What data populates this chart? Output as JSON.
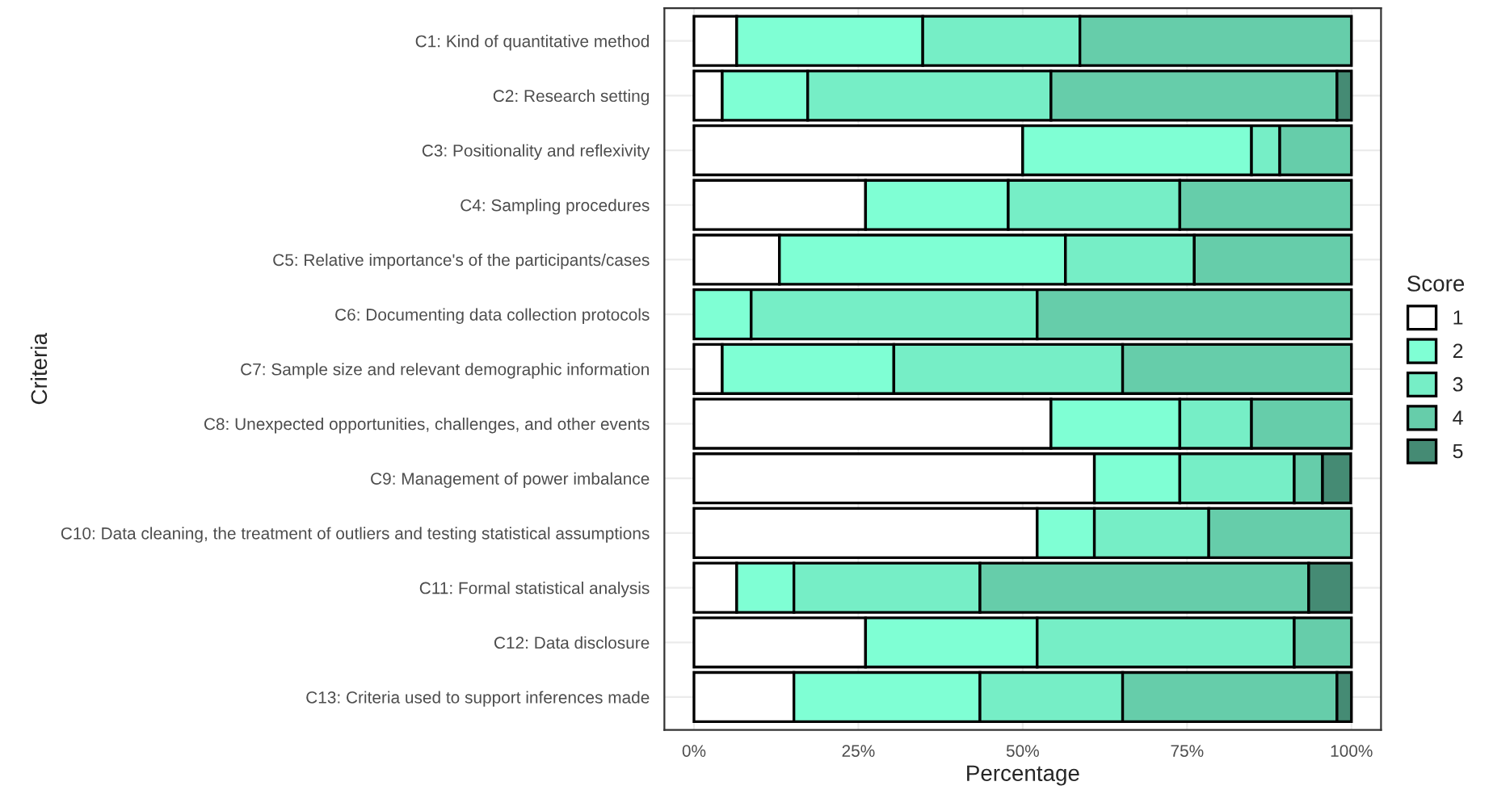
{
  "chart_data": {
    "type": "bar",
    "orientation": "horizontal",
    "stacked": true,
    "xlabel": "Percentage",
    "ylabel": "Criteria",
    "legend_title": "Score",
    "legend": "right",
    "grid": true,
    "categories": [
      "C1: Kind of quantitative method",
      "C2: Research setting",
      "C3: Positionality and reflexivity",
      "C4: Sampling procedures",
      "C5: Relative importance's of the participants/cases",
      "C6: Documenting data collection protocols",
      "C7: Sample size and relevant demographic information",
      "C8: Unexpected opportunities, challenges, and other events",
      "C9: Management of power imbalance",
      "C10: Data cleaning, the treatment of outliers and testing statistical assumptions",
      "C11: Formal statistical analysis",
      "C12: Data disclosure",
      "C13: Criteria used to support inferences made"
    ],
    "xlim": [
      0,
      100
    ],
    "xticks": [
      {
        "value": 0,
        "label": "0%"
      },
      {
        "value": 25,
        "label": "25%"
      },
      {
        "value": 50,
        "label": "50%"
      },
      {
        "value": 75,
        "label": "75%"
      },
      {
        "value": 100,
        "label": "100%"
      }
    ],
    "series": [
      {
        "name": "1",
        "color": "#ffffff",
        "values": [
          6.5,
          4.3,
          50.0,
          26.1,
          13.0,
          null,
          4.3,
          54.3,
          60.9,
          52.2,
          6.5,
          26.1,
          15.2
        ]
      },
      {
        "name": "2",
        "color": "#7fffd4",
        "values": [
          28.3,
          13.0,
          34.8,
          21.7,
          43.5,
          8.7,
          26.1,
          19.6,
          13.0,
          8.7,
          8.7,
          26.1,
          28.3
        ]
      },
      {
        "name": "3",
        "color": "#76eec6",
        "values": [
          23.9,
          37.0,
          4.3,
          26.1,
          19.6,
          43.5,
          34.8,
          10.9,
          17.4,
          17.4,
          28.3,
          39.1,
          21.7
        ]
      },
      {
        "name": "4",
        "color": "#66cdaa",
        "values": [
          41.3,
          43.5,
          10.9,
          26.1,
          23.9,
          47.8,
          34.8,
          15.2,
          4.3,
          21.7,
          50.0,
          8.7,
          32.6
        ]
      },
      {
        "name": "5",
        "color": "#458b74",
        "values": [
          null,
          2.2,
          null,
          null,
          null,
          null,
          null,
          null,
          4.3,
          null,
          6.5,
          null,
          2.2
        ]
      }
    ]
  }
}
